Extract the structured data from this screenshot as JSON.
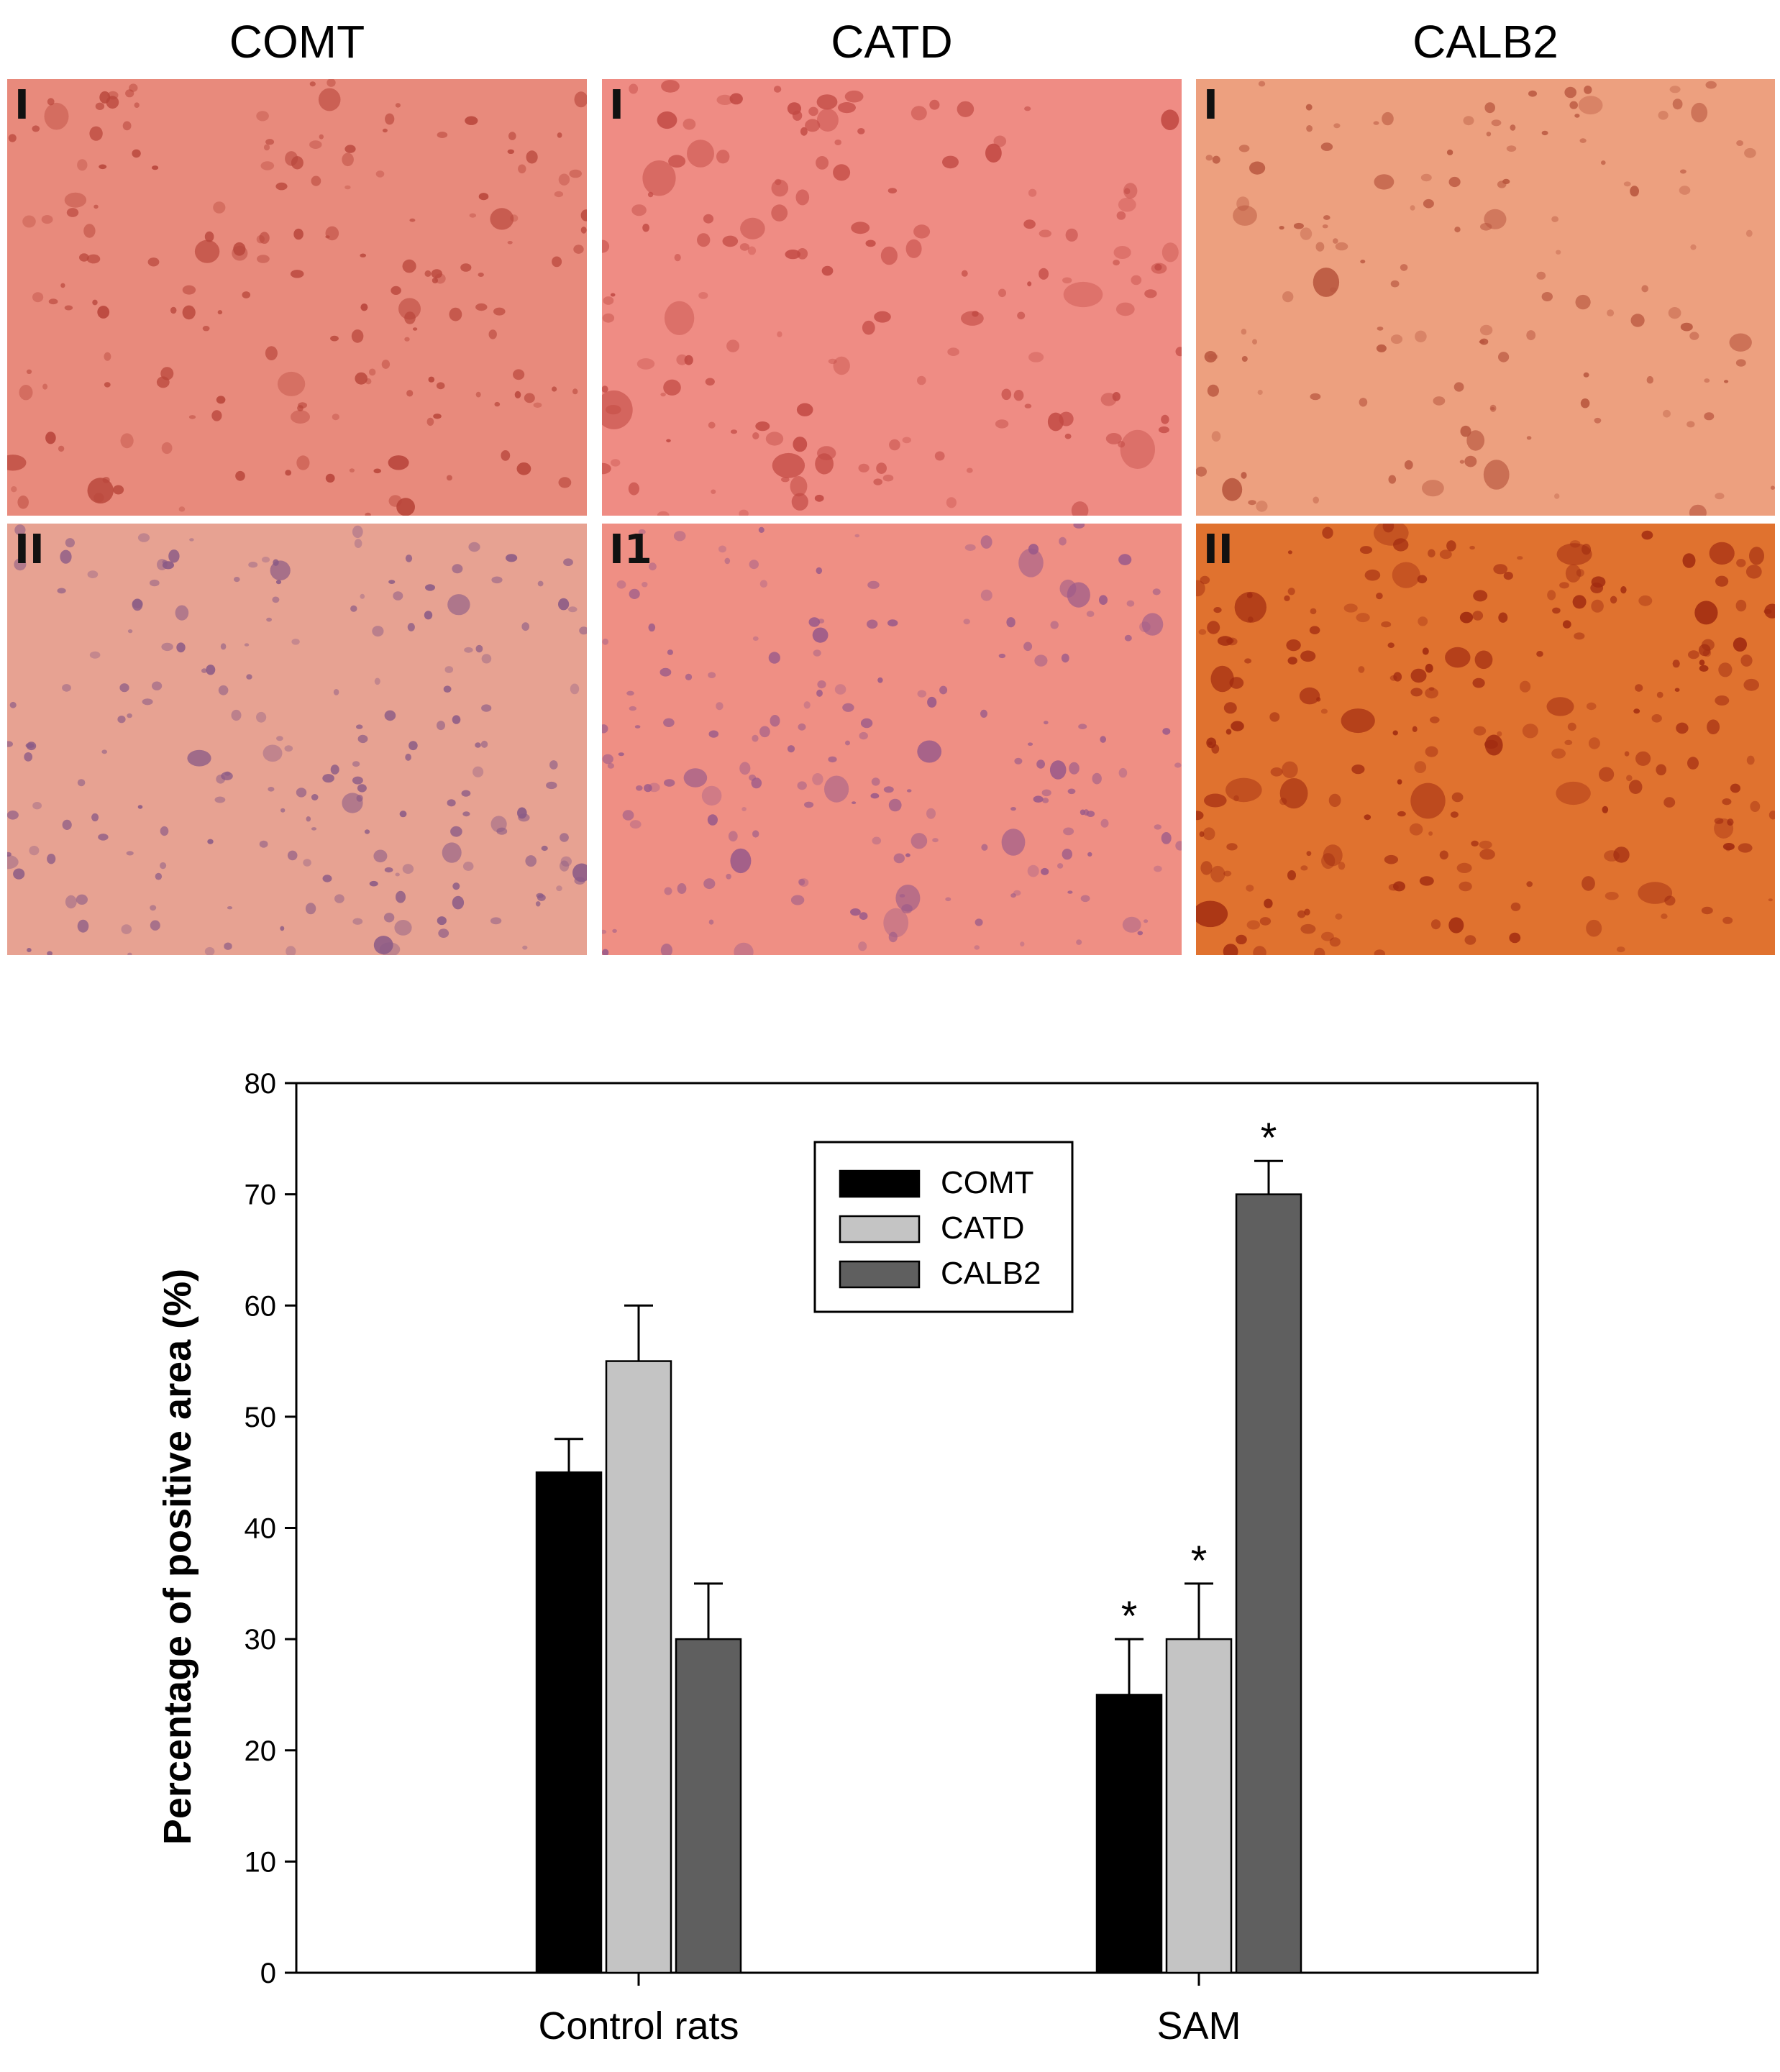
{
  "panels": {
    "columns": [
      "COMT",
      "CATD",
      "CALB2"
    ],
    "rows": [
      {
        "labels": [
          "I",
          "I",
          "I"
        ]
      },
      {
        "labels": [
          "II",
          "I1",
          "II"
        ]
      }
    ]
  },
  "colors": {
    "comt_bar": "#000000",
    "catd_bar": "#c4c4c4",
    "calb2_bar": "#5f5f5f",
    "tissue_comt_I": "#e88a7c",
    "tissue_comt_II": "#e7a292",
    "tissue_catd_I": "#ef8c84",
    "tissue_catd_II": "#ef8f84",
    "tissue_calb2_I": "#eda07f",
    "tissue_calb2_II": "#e0722f"
  },
  "chart_data": {
    "type": "bar",
    "categories": [
      "Control rats",
      "SAM"
    ],
    "series": [
      {
        "name": "COMT",
        "values": [
          45,
          25
        ],
        "errors": [
          3,
          5
        ],
        "significant": [
          false,
          true
        ]
      },
      {
        "name": "CATD",
        "values": [
          55,
          30
        ],
        "errors": [
          5,
          5
        ],
        "significant": [
          false,
          true
        ]
      },
      {
        "name": "CALB2",
        "values": [
          30,
          70
        ],
        "errors": [
          5,
          3
        ],
        "significant": [
          false,
          true
        ]
      }
    ],
    "ylabel": "Percentage of positive area (%)",
    "xlabel": "",
    "ylim": [
      0,
      80
    ],
    "yticks": [
      0,
      10,
      20,
      30,
      40,
      50,
      60,
      70,
      80
    ],
    "significance_marker": "*",
    "legend_position": "top-center",
    "grid": false
  }
}
